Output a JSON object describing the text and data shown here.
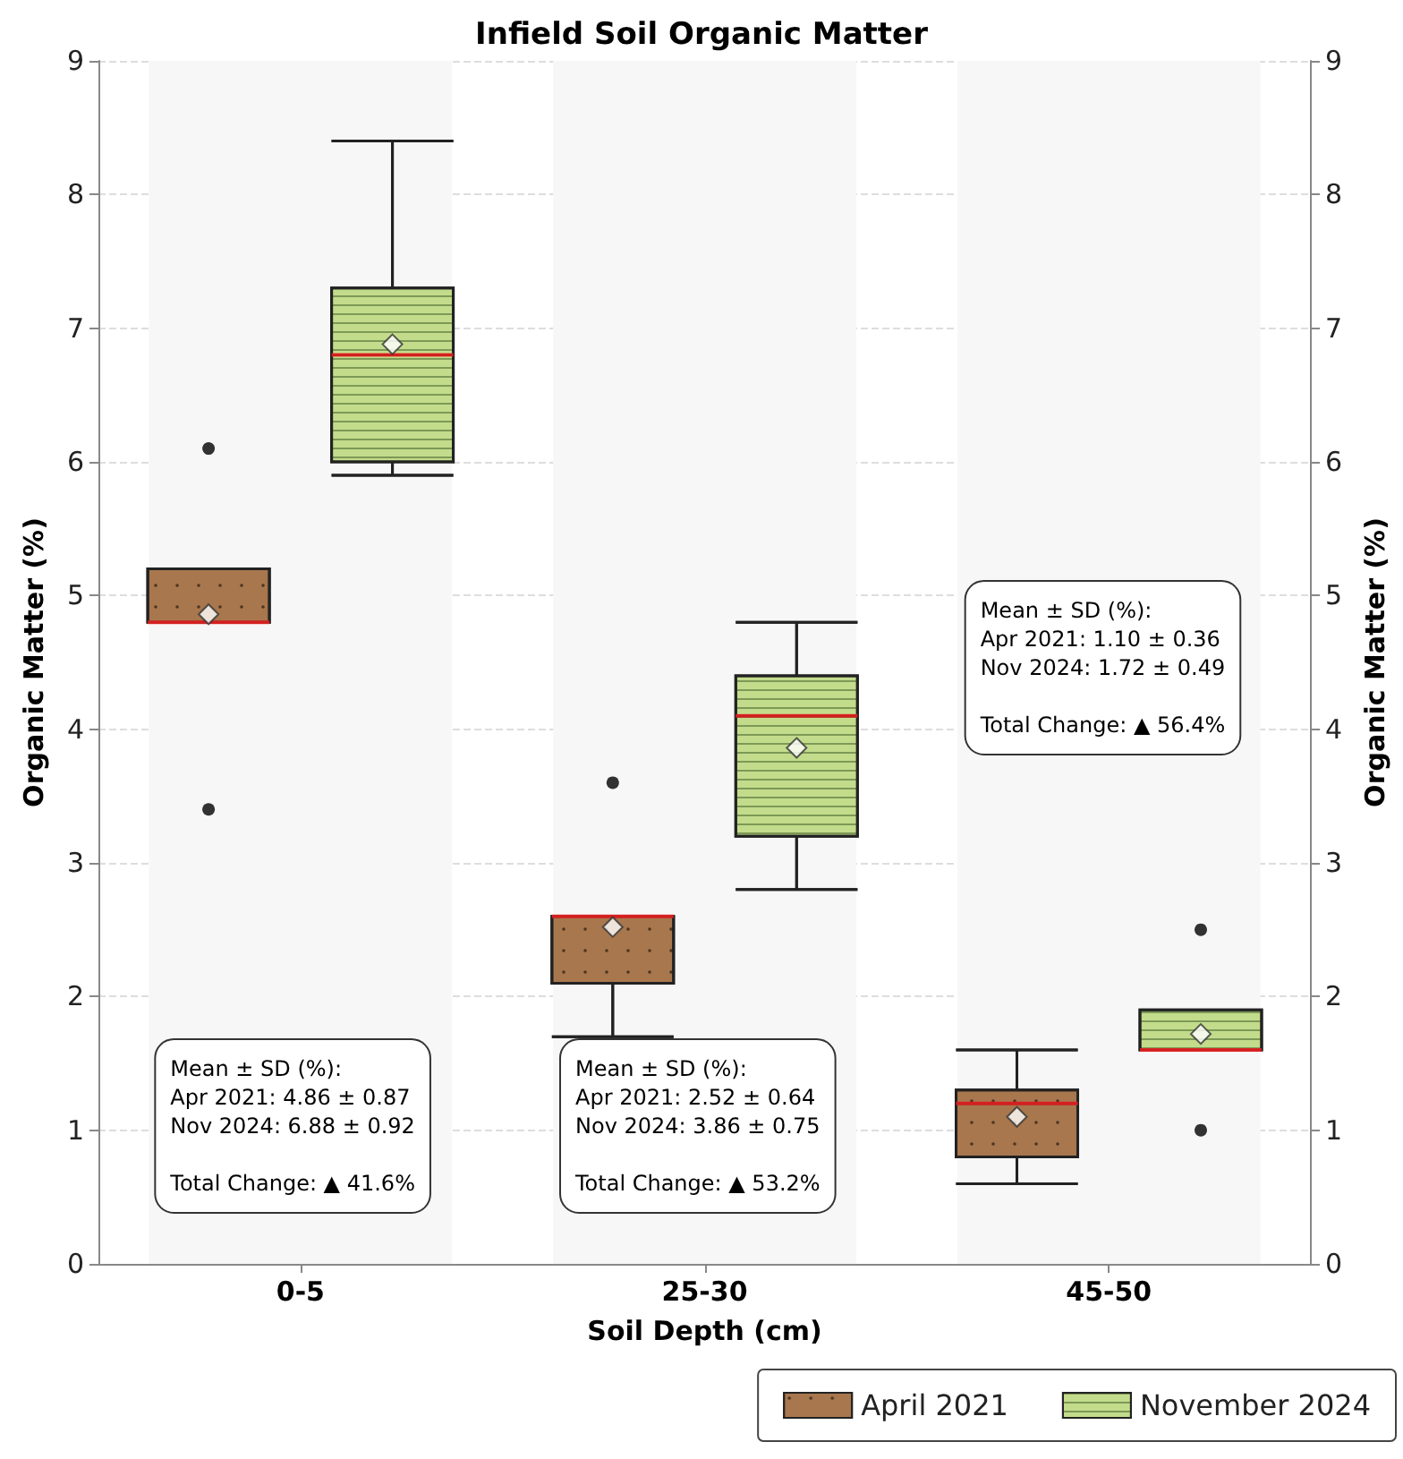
{
  "chart_data": {
    "type": "box",
    "title": "Infield Soil Organic Matter",
    "xlabel": "Soil Depth (cm)",
    "ylabel": "Organic Matter (%)",
    "y2label": "Organic Matter (%)",
    "categories": [
      "0-5",
      "25-30",
      "45-50"
    ],
    "series": [
      {
        "name": "April 2021",
        "color": "#a8774d",
        "boxes": [
          {
            "low": 4.8,
            "q1": 4.8,
            "median": 4.8,
            "q3": 5.2,
            "high": 5.2,
            "mean": 4.86,
            "outliers": [
              6.1,
              3.4
            ]
          },
          {
            "low": 1.7,
            "q1": 2.1,
            "median": 2.6,
            "q3": 2.6,
            "high": 2.6,
            "mean": 2.52,
            "outliers": [
              3.6
            ]
          },
          {
            "low": 0.6,
            "q1": 0.8,
            "median": 1.2,
            "q3": 1.3,
            "high": 1.6,
            "mean": 1.1
          }
        ]
      },
      {
        "name": "November 2024",
        "color": "#c3dc8c",
        "boxes": [
          {
            "low": 5.9,
            "q1": 6.0,
            "median": 6.8,
            "q3": 7.3,
            "high": 8.4,
            "mean": 6.88
          },
          {
            "low": 2.8,
            "q1": 3.2,
            "median": 4.1,
            "q3": 4.4,
            "high": 4.8,
            "mean": 3.86
          },
          {
            "low": 1.6,
            "q1": 1.6,
            "median": 1.6,
            "q3": 1.9,
            "high": 1.9,
            "mean": 1.72,
            "outliers": [
              2.5,
              1.0
            ]
          }
        ]
      }
    ],
    "ylim": [
      0,
      9
    ],
    "yticks": [
      0,
      1,
      2,
      3,
      4,
      5,
      6,
      7,
      8,
      9
    ],
    "y2lim": [
      0,
      9
    ],
    "y2ticks": [
      0,
      1,
      2,
      3,
      4,
      5,
      6,
      7,
      8,
      9
    ],
    "bands": [
      {
        "axis": "x",
        "from": "0-5",
        "to": "0-5",
        "color": "#f7f7f7"
      },
      {
        "axis": "x",
        "from": "25-30",
        "to": "25-30",
        "color": "#f7f7f7"
      },
      {
        "axis": "x",
        "from": "45-50",
        "to": "45-50",
        "color": "#f7f7f7"
      }
    ],
    "annotations": [
      "Mean ± SD (%):\nApr 2021: 4.86 ± 0.87\nNov 2024: 6.88 ± 0.92\n\nTotal Change: ▲ 41.6%",
      "Mean ± SD (%):\nApr 2021: 2.52 ± 0.64\nNov 2024: 3.86 ± 0.75\n\nTotal Change: ▲ 53.2%",
      "Mean ± SD (%):\nApr 2021: 1.10 ± 0.36\nNov 2024: 1.72 ± 0.49\n\nTotal Change: ▲ 56.4%"
    ],
    "grid": "y",
    "legend": "bottom right"
  }
}
